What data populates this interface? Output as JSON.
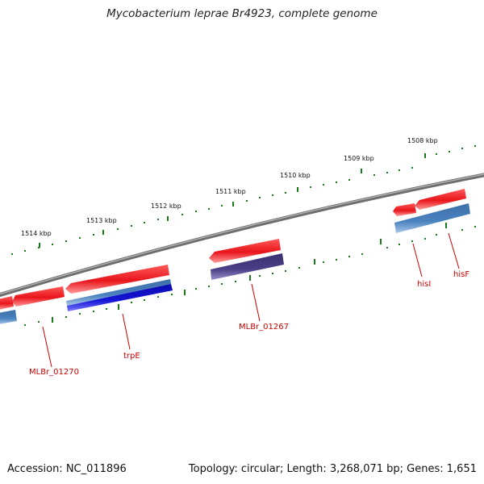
{
  "title": "Mycobacterium leprae Br4923, complete genome",
  "footer": {
    "accession": "Accession: NC_011896",
    "summary": "Topology: circular; Length: 3,268,071 bp; Genes: 1,651"
  },
  "ticks": [
    "1508 kbp",
    "1509 kbp",
    "1510 kbp",
    "1511 kbp",
    "1512 kbp",
    "1513 kbp",
    "1514 kbp"
  ],
  "genes": [
    "hisF",
    "hisI",
    "MLBr_01267",
    "trpE",
    "MLBr_01270"
  ],
  "colors": {
    "backbone": "#7a7a7a",
    "feature_red": "#e8151b",
    "feature_steelblue": "#4a82bf",
    "feature_blue": "#1515d6",
    "feature_purple": "#4a3f86",
    "tick_green": "#1a7a1a",
    "label_red": "#cc0000"
  }
}
